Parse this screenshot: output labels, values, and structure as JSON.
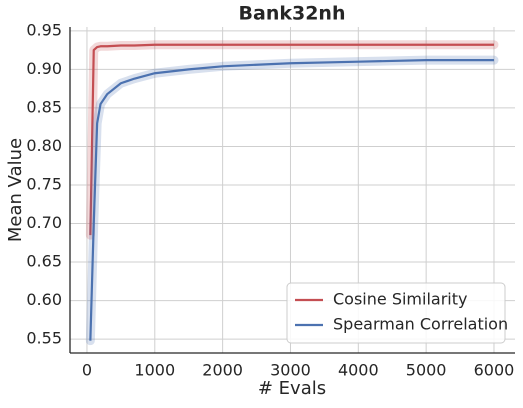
{
  "chart_data": {
    "type": "line",
    "title": "Bank32nh",
    "xlabel": "# Evals",
    "ylabel": "Mean Value",
    "x": [
      50,
      100,
      150,
      200,
      300,
      500,
      700,
      1000,
      1500,
      2000,
      3000,
      4000,
      5000,
      6000
    ],
    "series": [
      {
        "name": "Cosine Similarity",
        "color": "#c44e52",
        "values": [
          0.685,
          0.925,
          0.929,
          0.93,
          0.93,
          0.931,
          0.931,
          0.932,
          0.932,
          0.932,
          0.932,
          0.932,
          0.932,
          0.932
        ]
      },
      {
        "name": "Spearman Correlation",
        "color": "#4c72b0",
        "values": [
          0.548,
          0.7,
          0.83,
          0.855,
          0.868,
          0.882,
          0.888,
          0.895,
          0.9,
          0.904,
          0.908,
          0.91,
          0.912,
          0.912
        ]
      }
    ],
    "xlim": [
      -250,
      6310
    ],
    "ylim": [
      0.532,
      0.955
    ],
    "xticks": [
      0,
      1000,
      2000,
      3000,
      4000,
      5000,
      6000
    ],
    "yticks": [
      {
        "value": 0.55,
        "label": "0.55"
      },
      {
        "value": 0.6,
        "label": "0.60"
      },
      {
        "value": 0.65,
        "label": "0.65"
      },
      {
        "value": 0.7,
        "label": "0.70"
      },
      {
        "value": 0.75,
        "label": "0.75"
      },
      {
        "value": 0.8,
        "label": "0.80"
      },
      {
        "value": 0.85,
        "label": "0.85"
      },
      {
        "value": 0.9,
        "label": "0.90"
      },
      {
        "value": 0.95,
        "label": "0.95"
      }
    ],
    "grid": true,
    "legend": "lower right"
  }
}
